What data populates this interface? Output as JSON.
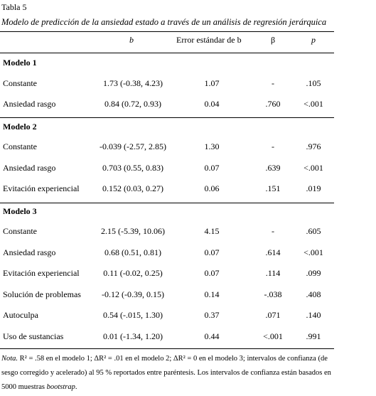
{
  "table_label": "Tabla 5",
  "caption": "Modelo de predicción de la ansiedad estado a través de un análisis de regresión jerárquica",
  "headers": {
    "b": "b",
    "se": "Error estándar de b",
    "beta": "β",
    "p": "p"
  },
  "models": [
    {
      "name": "Modelo 1",
      "rows": [
        {
          "label": "Constante",
          "b": "1.73 (-0.38, 4.23)",
          "se": "1.07",
          "beta": "-",
          "p": ".105"
        },
        {
          "label": "Ansiedad rasgo",
          "b": "0.84 (0.72, 0.93)",
          "se": "0.04",
          "beta": ".760",
          "p": "<.001"
        }
      ]
    },
    {
      "name": "Modelo 2",
      "rows": [
        {
          "label": "Constante",
          "b": "-0.039 (-2.57, 2.85)",
          "se": "1.30",
          "beta": "-",
          "p": ".976"
        },
        {
          "label": "Ansiedad rasgo",
          "b": "0.703 (0.55, 0.83)",
          "se": "0.07",
          "beta": ".639",
          "p": "<.001"
        },
        {
          "label": "Evitación experiencial",
          "b": "0.152 (0.03, 0.27)",
          "se": "0.06",
          "beta": ".151",
          "p": ".019"
        }
      ]
    },
    {
      "name": "Modelo 3",
      "rows": [
        {
          "label": "Constante",
          "b": "2.15 (-5.39, 10.06)",
          "se": "4.15",
          "beta": "-",
          "p": ".605"
        },
        {
          "label": "Ansiedad rasgo",
          "b": "0.68 (0.51, 0.81)",
          "se": "0.07",
          "beta": ".614",
          "p": "<.001"
        },
        {
          "label": "Evitación experiencial",
          "b": "0.11 (-0.02, 0.25)",
          "se": "0.07",
          "beta": ".114",
          "p": ".099"
        },
        {
          "label": "Solución de problemas",
          "b": "-0.12 (-0.39, 0.15)",
          "se": "0.14",
          "beta": "-.038",
          "p": ".408"
        },
        {
          "label": "Autoculpa",
          "b": "0.54 (-.015, 1.30)",
          "se": "0.37",
          "beta": ".071",
          "p": ".140"
        },
        {
          "label": "Uso de sustancias",
          "b": "0.01 (-1.34, 1.20)",
          "se": "0.44",
          "beta": "<.001",
          "p": ".991"
        }
      ]
    }
  ],
  "note": {
    "prefix": "Nota.",
    "line1": " R² = .58 en el modelo 1; ΔR² = .01 en el modelo 2; ΔR² = 0 en el modelo 3; intervalos de confianza (de",
    "line2": "sesgo corregido y acelerado) al 95 % reportados entre paréntesis. Los intervalos de confianza están basados en",
    "line3_a": "5000 muestras ",
    "line3_b": "bootstrap",
    "line3_c": "."
  }
}
